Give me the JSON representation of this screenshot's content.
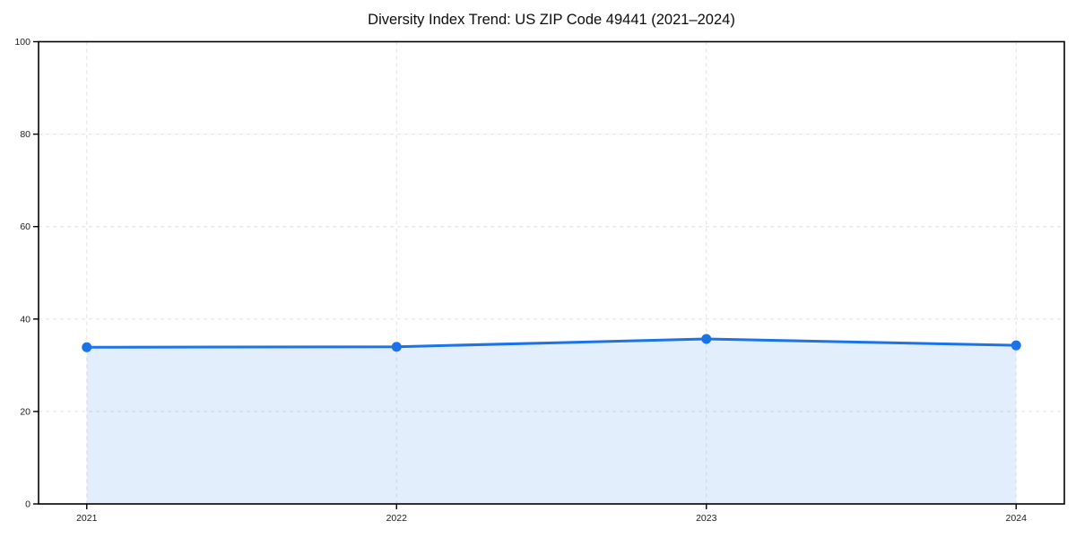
{
  "chart_data": {
    "type": "area",
    "title": "Diversity Index Trend: US ZIP Code 49441 (2021–2024)",
    "x": [
      "2021",
      "2022",
      "2023",
      "2024"
    ],
    "series": [
      {
        "name": "Diversity Index",
        "values": [
          33.9,
          34.0,
          35.7,
          34.3
        ]
      }
    ],
    "xlabel": "",
    "ylabel": "",
    "ylim": [
      0,
      100
    ],
    "yticks": [
      0,
      20,
      40,
      60,
      80,
      100
    ],
    "grid": "dashed-both-axes",
    "legend": "none",
    "colors": {
      "line": "#1a73e8",
      "marker": "#1a73e8",
      "area_fill": "rgba(26,115,232,0.12)",
      "gridline": "#e2e2e2",
      "frame": "#000000",
      "background": "#ffffff"
    }
  }
}
